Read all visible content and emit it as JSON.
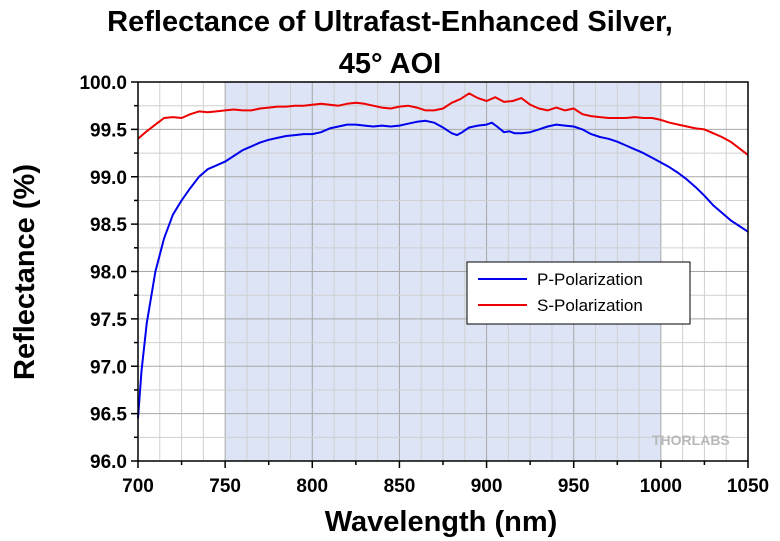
{
  "chart_data": {
    "type": "line",
    "title": "Reflectance of Ultrafast-Enhanced Silver,",
    "subtitle": "45° AOI",
    "xlabel": "Wavelength (nm)",
    "ylabel": "Reflectance (%)",
    "xlim": [
      700,
      1050
    ],
    "ylim": [
      96.0,
      100.0
    ],
    "x_ticks": [
      "700",
      "750",
      "800",
      "850",
      "900",
      "950",
      "1000",
      "1050"
    ],
    "y_ticks": [
      "96.0",
      "96.5",
      "97.0",
      "97.5",
      "98.0",
      "98.5",
      "99.0",
      "99.5",
      "100.0"
    ],
    "grid": true,
    "highlight_band": {
      "x_start": 750,
      "x_end": 1000,
      "color": "#dce4f5"
    },
    "legend_position": "center-right",
    "watermark": "THORLABS",
    "series": [
      {
        "name": "P-Polarization",
        "color": "#0000ee",
        "x": [
          700,
          702,
          705,
          710,
          715,
          720,
          725,
          730,
          735,
          740,
          745,
          750,
          755,
          760,
          765,
          770,
          775,
          780,
          785,
          790,
          795,
          800,
          805,
          810,
          815,
          820,
          825,
          830,
          835,
          840,
          845,
          850,
          855,
          860,
          865,
          870,
          875,
          880,
          883,
          886,
          890,
          895,
          900,
          903,
          906,
          910,
          913,
          916,
          920,
          925,
          930,
          935,
          940,
          945,
          950,
          955,
          960,
          965,
          970,
          975,
          980,
          985,
          990,
          995,
          1000,
          1005,
          1010,
          1015,
          1020,
          1025,
          1030,
          1035,
          1040,
          1045,
          1050
        ],
        "values": [
          96.45,
          96.95,
          97.45,
          98.0,
          98.35,
          98.6,
          98.75,
          98.88,
          99.0,
          99.08,
          99.12,
          99.16,
          99.22,
          99.28,
          99.32,
          99.36,
          99.39,
          99.41,
          99.43,
          99.44,
          99.45,
          99.45,
          99.47,
          99.51,
          99.53,
          99.55,
          99.55,
          99.54,
          99.53,
          99.54,
          99.53,
          99.54,
          99.56,
          99.58,
          99.59,
          99.57,
          99.52,
          99.46,
          99.44,
          99.47,
          99.52,
          99.54,
          99.55,
          99.57,
          99.53,
          99.47,
          99.48,
          99.46,
          99.46,
          99.47,
          99.5,
          99.53,
          99.55,
          99.54,
          99.53,
          99.5,
          99.45,
          99.42,
          99.4,
          99.37,
          99.33,
          99.29,
          99.25,
          99.2,
          99.15,
          99.1,
          99.04,
          98.97,
          98.89,
          98.8,
          98.7,
          98.62,
          98.54,
          98.48,
          98.42
        ]
      },
      {
        "name": "S-Polarization",
        "color": "#ee0000",
        "x": [
          700,
          705,
          710,
          715,
          720,
          725,
          730,
          735,
          740,
          745,
          750,
          755,
          760,
          765,
          770,
          775,
          780,
          785,
          790,
          795,
          800,
          805,
          810,
          815,
          820,
          825,
          830,
          835,
          840,
          845,
          850,
          855,
          860,
          865,
          870,
          875,
          880,
          885,
          890,
          895,
          900,
          905,
          910,
          915,
          920,
          925,
          930,
          935,
          940,
          945,
          950,
          955,
          960,
          965,
          970,
          975,
          980,
          985,
          990,
          995,
          1000,
          1005,
          1010,
          1015,
          1020,
          1025,
          1030,
          1035,
          1040,
          1045,
          1050
        ],
        "values": [
          99.4,
          99.48,
          99.55,
          99.62,
          99.63,
          99.62,
          99.66,
          99.69,
          99.68,
          99.69,
          99.7,
          99.71,
          99.7,
          99.7,
          99.72,
          99.73,
          99.74,
          99.74,
          99.75,
          99.75,
          99.76,
          99.77,
          99.76,
          99.75,
          99.77,
          99.78,
          99.77,
          99.75,
          99.73,
          99.72,
          99.74,
          99.75,
          99.73,
          99.7,
          99.7,
          99.72,
          99.78,
          99.82,
          99.88,
          99.83,
          99.8,
          99.84,
          99.79,
          99.8,
          99.83,
          99.76,
          99.72,
          99.7,
          99.73,
          99.7,
          99.72,
          99.66,
          99.64,
          99.63,
          99.62,
          99.62,
          99.62,
          99.63,
          99.62,
          99.62,
          99.6,
          99.57,
          99.55,
          99.53,
          99.51,
          99.5,
          99.46,
          99.42,
          99.37,
          99.3,
          99.23
        ]
      }
    ]
  }
}
